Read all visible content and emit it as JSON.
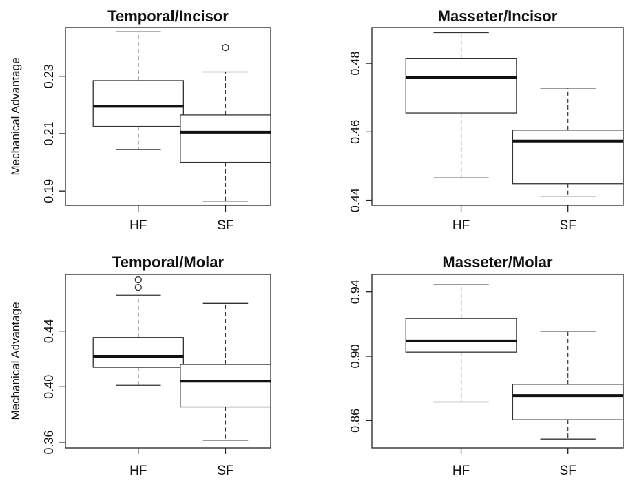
{
  "chart_data": [
    {
      "type": "boxplot",
      "title": "Temporal/Incisor",
      "ylabel": "Mechanical Advantage",
      "categories": [
        "HF",
        "SF"
      ],
      "yticks": [
        "0.19",
        "0.21",
        "0.23"
      ],
      "ylim": [
        0.185,
        0.247
      ],
      "boxes": [
        {
          "category": "HF",
          "whisker_low": 0.2045,
          "q1": 0.2125,
          "median": 0.2195,
          "q3": 0.2285,
          "whisker_high": 0.2455,
          "outliers": []
        },
        {
          "category": "SF",
          "whisker_low": 0.1865,
          "q1": 0.2,
          "median": 0.2105,
          "q3": 0.2165,
          "whisker_high": 0.2315,
          "outliers": [
            0.24
          ]
        }
      ]
    },
    {
      "type": "boxplot",
      "title": "Masseter/Incisor",
      "ylabel": "",
      "categories": [
        "HF",
        "SF"
      ],
      "yticks": [
        "0.44",
        "0.46",
        "0.48"
      ],
      "ylim": [
        0.4385,
        0.4905
      ],
      "boxes": [
        {
          "category": "HF",
          "whisker_low": 0.4465,
          "q1": 0.4655,
          "median": 0.476,
          "q3": 0.4815,
          "whisker_high": 0.489,
          "outliers": []
        },
        {
          "category": "SF",
          "whisker_low": 0.4412,
          "q1": 0.4448,
          "median": 0.4573,
          "q3": 0.4605,
          "whisker_high": 0.4728,
          "outliers": []
        }
      ]
    },
    {
      "type": "boxplot",
      "title": "Temporal/Molar",
      "ylabel": "Mechanical Advantage",
      "categories": [
        "HF",
        "SF"
      ],
      "yticks": [
        "0.36",
        "0.40",
        "0.44"
      ],
      "ylim": [
        0.356,
        0.481
      ],
      "boxes": [
        {
          "category": "HF",
          "whisker_low": 0.401,
          "q1": 0.414,
          "median": 0.422,
          "q3": 0.4355,
          "whisker_high": 0.466,
          "outliers": [
            0.4715,
            0.477
          ]
        },
        {
          "category": "SF",
          "whisker_low": 0.3615,
          "q1": 0.3855,
          "median": 0.404,
          "q3": 0.416,
          "whisker_high": 0.46,
          "outliers": []
        }
      ]
    },
    {
      "type": "boxplot",
      "title": "Masseter/Molar",
      "ylabel": "",
      "categories": [
        "HF",
        "SF"
      ],
      "yticks": [
        "0.86",
        "0.90",
        "0.94"
      ],
      "ylim": [
        0.843,
        0.951
      ],
      "boxes": [
        {
          "category": "HF",
          "whisker_low": 0.8715,
          "q1": 0.9025,
          "median": 0.9095,
          "q3": 0.9235,
          "whisker_high": 0.9445,
          "outliers": []
        },
        {
          "category": "SF",
          "whisker_low": 0.8485,
          "q1": 0.8605,
          "median": 0.8755,
          "q3": 0.8825,
          "whisker_high": 0.9155,
          "outliers": []
        }
      ]
    }
  ]
}
